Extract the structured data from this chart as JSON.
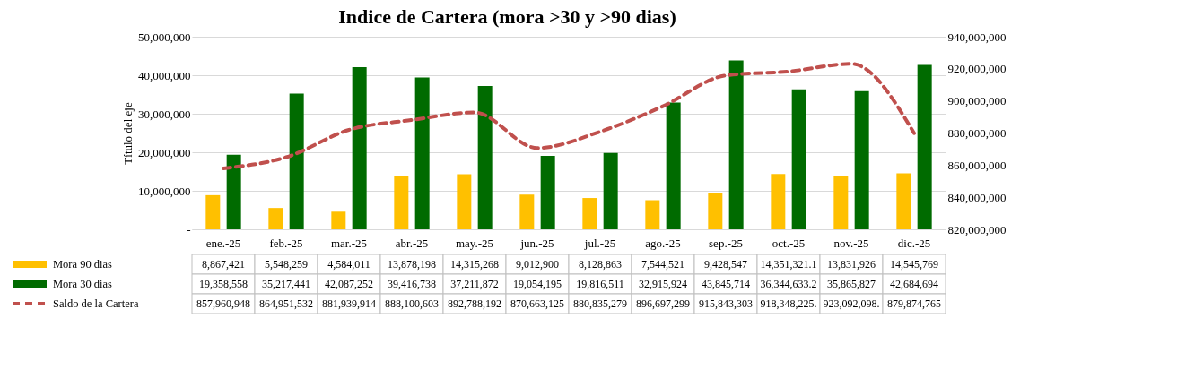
{
  "chart_data": {
    "type": "bar",
    "title": "Indice de Cartera (mora >30 y >90 dias)",
    "ylabel": "Título del eje",
    "categories": [
      "ene.-25",
      "feb.-25",
      "mar.-25",
      "abr.-25",
      "may.-25",
      "jun.-25",
      "jul.-25",
      "ago.-25",
      "sep.-25",
      "oct.-25",
      "nov.-25",
      "dic.-25"
    ],
    "series": [
      {
        "name": "Mora 90 dias",
        "color": "#ffc000",
        "values": [
          8867421,
          5548259,
          4584011,
          13878198,
          14315268,
          9012900,
          8128863,
          7544521,
          9428547,
          14351321.1,
          13831926,
          14545769
        ],
        "value_labels": [
          "8,867,421",
          "5,548,259",
          "4,584,011",
          "13,878,198",
          "14,315,268",
          "9,012,900",
          "8,128,863",
          "7,544,521",
          "9,428,547",
          "14,351,321.1",
          "13,831,926",
          "14,545,769"
        ]
      },
      {
        "name": "Mora 30 dias",
        "color": "#006b00",
        "values": [
          19358558,
          35217441,
          42087252,
          39416738,
          37211872,
          19054195,
          19816511,
          32915924,
          43845714,
          36344633.2,
          35865827,
          42684694
        ],
        "value_labels": [
          "19,358,558",
          "35,217,441",
          "42,087,252",
          "39,416,738",
          "37,211,872",
          "19,054,195",
          "19,816,511",
          "32,915,924",
          "43,845,714",
          "36,344,633.2",
          "35,865,827",
          "42,684,694"
        ]
      },
      {
        "name": "Saldo de la Cartera",
        "type": "line",
        "axis": "y2",
        "color": "#c0504d",
        "line_style": "dashed",
        "values": [
          857960948,
          864951532,
          881939914,
          888100603,
          892788192,
          870663125,
          880835279,
          896697299,
          915843303,
          918348225,
          923092098,
          879874765
        ],
        "value_labels": [
          "857,960,948",
          "864,951,532",
          "881,939,914",
          "888,100,603",
          "892,788,192",
          "870,663,125",
          "880,835,279",
          "896,697,299",
          "915,843,303",
          "918,348,225.",
          "923,092,098.",
          "879,874,765"
        ]
      }
    ],
    "ylim": [
      0,
      50000000
    ],
    "yticks": [
      {
        "value": 0,
        "label": "-"
      },
      {
        "value": 10000000,
        "label": "10,000,000"
      },
      {
        "value": 20000000,
        "label": "20,000,000"
      },
      {
        "value": 30000000,
        "label": "30,000,000"
      },
      {
        "value": 40000000,
        "label": "40,000,000"
      },
      {
        "value": 50000000,
        "label": "50,000,000"
      }
    ],
    "y2lim": [
      820000000,
      940000000
    ],
    "y2ticks": [
      {
        "value": 820000000,
        "label": "820,000,000"
      },
      {
        "value": 840000000,
        "label": "840,000,000"
      },
      {
        "value": 860000000,
        "label": "860,000,000"
      },
      {
        "value": 880000000,
        "label": "880,000,000"
      },
      {
        "value": 900000000,
        "label": "900,000,000"
      },
      {
        "value": 920000000,
        "label": "920,000,000"
      },
      {
        "value": 940000000,
        "label": "940,000,000"
      }
    ],
    "grid": "y",
    "legend": "bottom",
    "data_labels": true
  }
}
